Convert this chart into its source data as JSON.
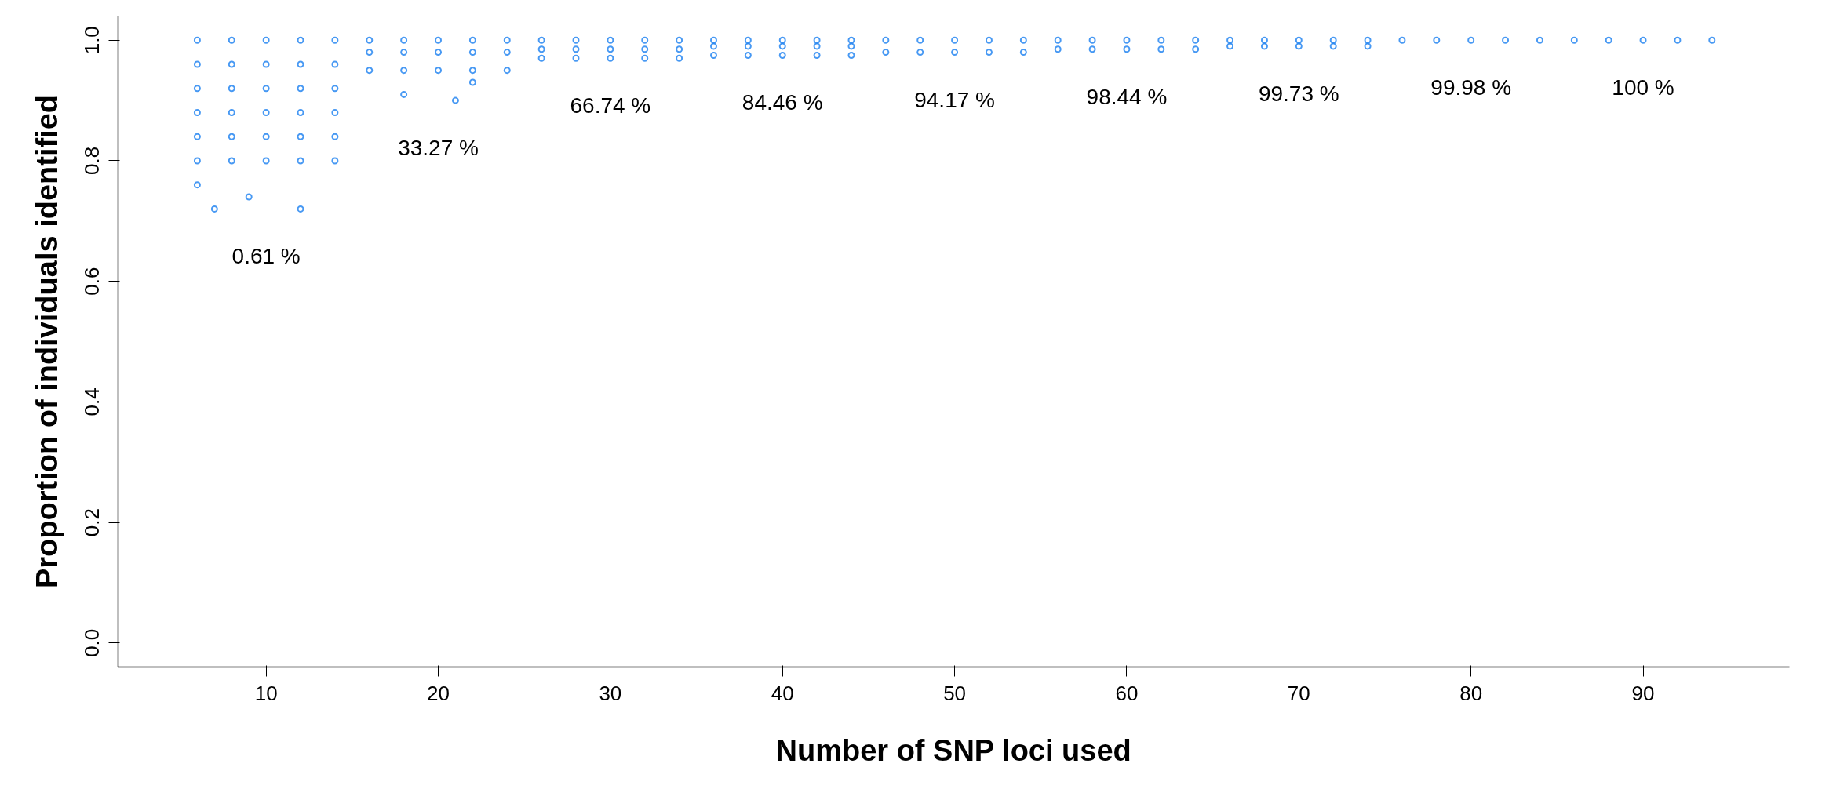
{
  "chart_data": {
    "type": "scatter",
    "xlabel": "Number of SNP loci used",
    "ylabel": "Proportion of individuals identified",
    "xlim": [
      1.4,
      98.5
    ],
    "ylim": [
      -0.04,
      1.04
    ],
    "xticks": [
      10,
      20,
      30,
      40,
      50,
      60,
      70,
      80,
      90
    ],
    "yticks": [
      {
        "value": 0,
        "label": "0.0"
      },
      0.2,
      0.4,
      0.6,
      0.8,
      {
        "value": 1,
        "label": "1.0"
      }
    ],
    "grid": false,
    "marker": "circle",
    "series": [
      {
        "color": "#1a80f0",
        "x": [
          7,
          12,
          6,
          9,
          6,
          8,
          10,
          12,
          14,
          6,
          8,
          10,
          12,
          14,
          6,
          8,
          10,
          12,
          14,
          6,
          8,
          10,
          12,
          14,
          6,
          8,
          10,
          12,
          14,
          6,
          8,
          10,
          12,
          14
        ],
        "values": [
          0.72,
          0.72,
          0.76,
          0.74,
          0.8,
          0.8,
          0.8,
          0.8,
          0.8,
          0.84,
          0.84,
          0.84,
          0.84,
          0.84,
          0.88,
          0.88,
          0.88,
          0.88,
          0.88,
          0.92,
          0.92,
          0.92,
          0.92,
          0.92,
          0.96,
          0.96,
          0.96,
          0.96,
          0.96,
          1.0,
          1.0,
          1.0,
          1.0,
          1.0
        ]
      },
      {
        "color": "#1a80f0",
        "x": [
          18,
          21,
          22,
          16,
          18,
          20,
          22,
          24,
          16,
          18,
          20,
          22,
          24,
          16,
          18,
          20,
          22,
          24
        ],
        "values": [
          0.91,
          0.9,
          0.93,
          0.95,
          0.95,
          0.95,
          0.95,
          0.95,
          0.98,
          0.98,
          0.98,
          0.98,
          0.98,
          1.0,
          1.0,
          1.0,
          1.0,
          1.0
        ]
      },
      {
        "color": "#1a80f0",
        "x": [
          26,
          28,
          30,
          32,
          34,
          26,
          28,
          30,
          32,
          34,
          26,
          28,
          30,
          32,
          34
        ],
        "values": [
          0.97,
          0.97,
          0.97,
          0.97,
          0.97,
          0.985,
          0.985,
          0.985,
          0.985,
          0.985,
          1.0,
          1.0,
          1.0,
          1.0,
          1.0
        ]
      },
      {
        "color": "#1a80f0",
        "x": [
          36,
          38,
          40,
          42,
          44,
          36,
          38,
          40,
          42,
          44,
          36,
          38,
          40,
          42,
          44
        ],
        "values": [
          0.975,
          0.975,
          0.975,
          0.975,
          0.975,
          0.99,
          0.99,
          0.99,
          0.99,
          0.99,
          1.0,
          1.0,
          1.0,
          1.0,
          1.0
        ]
      },
      {
        "color": "#1a80f0",
        "x": [
          46,
          48,
          50,
          52,
          54,
          46,
          48,
          50,
          52,
          54
        ],
        "values": [
          0.98,
          0.98,
          0.98,
          0.98,
          0.98,
          1.0,
          1.0,
          1.0,
          1.0,
          1.0
        ]
      },
      {
        "color": "#1a80f0",
        "x": [
          56,
          58,
          60,
          62,
          64,
          56,
          58,
          60,
          62,
          64
        ],
        "values": [
          0.985,
          0.985,
          0.985,
          0.985,
          0.985,
          1.0,
          1.0,
          1.0,
          1.0,
          1.0
        ]
      },
      {
        "color": "#1a80f0",
        "x": [
          66,
          68,
          70,
          72,
          74,
          66,
          68,
          70,
          72,
          74
        ],
        "values": [
          0.99,
          0.99,
          0.99,
          0.99,
          0.99,
          1.0,
          1.0,
          1.0,
          1.0,
          1.0
        ]
      },
      {
        "color": "#1a80f0",
        "x": [
          76,
          78,
          80,
          82,
          84
        ],
        "values": [
          1.0,
          1.0,
          1.0,
          1.0,
          1.0
        ]
      },
      {
        "color": "#1a80f0",
        "x": [
          86,
          88,
          90,
          92,
          94
        ],
        "values": [
          1.0,
          1.0,
          1.0,
          1.0,
          1.0
        ]
      }
    ],
    "annotations": [
      "0.61 %",
      "33.27 %",
      "66.74 %",
      "84.46 %",
      "94.17 %",
      "98.44 %",
      "99.73 %",
      "99.98 %",
      "100 %"
    ]
  }
}
